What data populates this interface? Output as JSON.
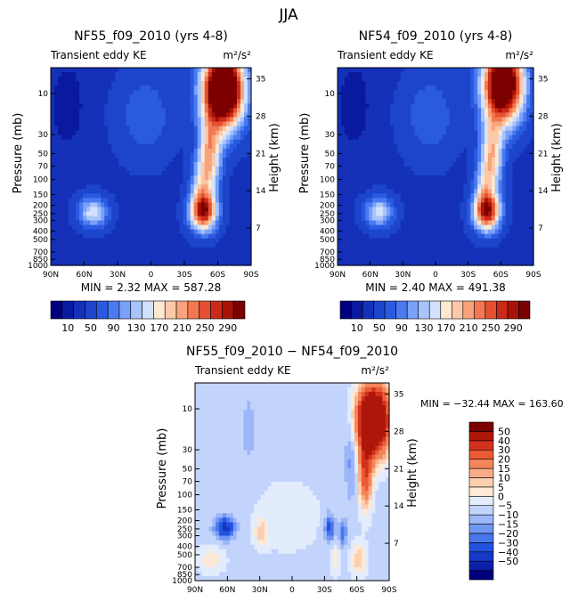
{
  "figure_title": "JJA",
  "colors": {
    "seq": [
      "#00007f",
      "#0a1a9e",
      "#1431b8",
      "#1c45cc",
      "#2a5ae0",
      "#4a7af0",
      "#7aa0f8",
      "#a8c4fc",
      "#d2e2fd",
      "#fde8d2",
      "#fbc9a8",
      "#f8a37c",
      "#f27852",
      "#e4502f",
      "#cc2a18",
      "#a81208",
      "#7c0000"
    ],
    "div": [
      "#00007f",
      "#0b1fa8",
      "#1538c6",
      "#2452e0",
      "#4776ec",
      "#7196f4",
      "#9cb6f9",
      "#c3d4fc",
      "#e2ecfd",
      "#fde9d6",
      "#fbcfb0",
      "#f8ad86",
      "#f4845a",
      "#ea5a34",
      "#d2311c",
      "#ad160a",
      "#7c0000"
    ]
  },
  "chart_data": [
    {
      "type": "heatmap",
      "title": "NF55_f09_2010 (yrs 4-8)",
      "subtitle": "Transient eddy KE",
      "units": "m²/s²",
      "ylabel": "Pressure (mb)",
      "y2label": "Height (km)",
      "x_ticks": [
        "90N",
        "60N",
        "30N",
        "0",
        "30S",
        "60S",
        "90S"
      ],
      "y_ticks": [
        "10",
        "30",
        "50",
        "70",
        "100",
        "150",
        "200",
        "250",
        "300",
        "400",
        "500",
        "700",
        "850",
        "1000"
      ],
      "y2_ticks": [
        "35",
        "28",
        "21",
        "14",
        "7"
      ],
      "stats": "MIN =    2.32   MAX = 587.28",
      "colorbar_labels": [
        "10",
        "50",
        "90",
        "130",
        "170",
        "210",
        "250",
        "290"
      ],
      "levels": [
        10,
        30,
        50,
        70,
        90,
        110,
        130,
        150,
        170,
        190,
        210,
        230,
        250,
        270,
        290,
        310
      ],
      "background": 45,
      "features": [
        {
          "lat": -65,
          "lat_width": 18,
          "alt": 33,
          "alt_width": 7,
          "amp": 420
        },
        {
          "lat": -53,
          "lat_width": 10,
          "alt": 21,
          "alt_width": 7,
          "amp": 160
        },
        {
          "lat": -45,
          "lat_width": 9,
          "alt": 15,
          "alt_width": 5,
          "amp": 90
        },
        {
          "lat": -47,
          "lat_width": 12,
          "alt": 10,
          "alt_width": 3.5,
          "amp": 240
        },
        {
          "lat": 52,
          "lat_width": 13,
          "alt": 10,
          "alt_width": 2.8,
          "amp": 120
        },
        {
          "lat": 5,
          "lat_width": 25,
          "alt": 28,
          "alt_width": 8,
          "amp": 40
        },
        {
          "lat": 75,
          "lat_width": 15,
          "alt": 30,
          "alt_width": 8,
          "amp": -30
        }
      ]
    },
    {
      "type": "heatmap",
      "title": "NF54_f09_2010 (yrs 4-8)",
      "subtitle": "Transient eddy KE",
      "units": "m²/s²",
      "ylabel": "Pressure (mb)",
      "y2label": "Height (km)",
      "x_ticks": [
        "90N",
        "60N",
        "30N",
        "0",
        "30S",
        "60S",
        "90S"
      ],
      "y_ticks": [
        "10",
        "30",
        "50",
        "70",
        "100",
        "150",
        "200",
        "250",
        "300",
        "400",
        "500",
        "700",
        "850",
        "1000"
      ],
      "y2_ticks": [
        "35",
        "28",
        "21",
        "14",
        "7"
      ],
      "stats": "MIN =    2.40   MAX = 491.38",
      "colorbar_labels": [
        "10",
        "50",
        "90",
        "130",
        "170",
        "210",
        "250",
        "290"
      ],
      "levels": [
        10,
        30,
        50,
        70,
        90,
        110,
        130,
        150,
        170,
        190,
        210,
        230,
        250,
        270,
        290,
        310
      ],
      "background": 45,
      "features": [
        {
          "lat": -62,
          "lat_width": 18,
          "alt": 34,
          "alt_width": 7,
          "amp": 380
        },
        {
          "lat": -52,
          "lat_width": 10,
          "alt": 21,
          "alt_width": 7,
          "amp": 150
        },
        {
          "lat": -45,
          "lat_width": 9,
          "alt": 15,
          "alt_width": 5,
          "amp": 85
        },
        {
          "lat": -47,
          "lat_width": 12,
          "alt": 10,
          "alt_width": 3.5,
          "amp": 245
        },
        {
          "lat": 52,
          "lat_width": 13,
          "alt": 10,
          "alt_width": 2.8,
          "amp": 115
        },
        {
          "lat": 5,
          "lat_width": 25,
          "alt": 28,
          "alt_width": 8,
          "amp": 40
        },
        {
          "lat": 75,
          "lat_width": 15,
          "alt": 30,
          "alt_width": 8,
          "amp": -30
        }
      ]
    },
    {
      "type": "heatmap",
      "title": "NF55_f09_2010 − NF54_f09_2010",
      "subtitle": "Transient eddy KE",
      "units": "m²/s²",
      "ylabel": "Pressure (mb)",
      "y2label": "Height (km)",
      "x_ticks": [
        "90N",
        "60N",
        "30N",
        "0",
        "30S",
        "60S",
        "90S"
      ],
      "y_ticks": [
        "10",
        "30",
        "50",
        "70",
        "100",
        "150",
        "200",
        "250",
        "300",
        "400",
        "500",
        "700",
        "850",
        "1000"
      ],
      "y2_ticks": [
        "35",
        "28",
        "21",
        "14",
        "7"
      ],
      "stats": "MIN = −32.44   MAX = 163.60",
      "colorbar_labels": [
        "50",
        "40",
        "30",
        "20",
        "15",
        "10",
        "5",
        "0",
        "−5",
        "−10",
        "−15",
        "−20",
        "−30",
        "−40",
        "−50"
      ],
      "levels": [
        -50,
        -40,
        -30,
        -20,
        -15,
        -10,
        -5,
        0,
        5,
        10,
        15,
        20,
        30,
        40,
        50
      ],
      "background": -2,
      "features": [
        {
          "lat": -75,
          "lat_width": 14,
          "alt": 30,
          "alt_width": 6,
          "amp": 110
        },
        {
          "lat": -68,
          "lat_width": 6,
          "alt": 20,
          "alt_width": 6,
          "amp": 40
        },
        {
          "lat": -55,
          "lat_width": 6,
          "alt": 24,
          "alt_width": 8,
          "amp": -12
        },
        {
          "lat": 62,
          "lat_width": 9,
          "alt": 10,
          "alt_width": 2,
          "amp": -32
        },
        {
          "lat": 28,
          "lat_width": 6,
          "alt": 9,
          "alt_width": 2.5,
          "amp": 14
        },
        {
          "lat": -35,
          "lat_width": 5,
          "alt": 10,
          "alt_width": 2.5,
          "amp": -22
        },
        {
          "lat": -47,
          "lat_width": 3.5,
          "alt": 9,
          "alt_width": 2.5,
          "amp": -18
        },
        {
          "lat": -62,
          "lat_width": 7,
          "alt": 4,
          "alt_width": 3,
          "amp": 16
        },
        {
          "lat": -40,
          "lat_width": 4,
          "alt": 4,
          "alt_width": 3,
          "amp": 10
        },
        {
          "lat": 75,
          "lat_width": 12,
          "alt": 4,
          "alt_width": 2.5,
          "amp": 10
        },
        {
          "lat": 5,
          "lat_width": 40,
          "alt": 12,
          "alt_width": 8,
          "amp": 4
        },
        {
          "lat": 40,
          "lat_width": 10,
          "alt": 28,
          "alt_width": 10,
          "amp": -4
        }
      ]
    }
  ]
}
